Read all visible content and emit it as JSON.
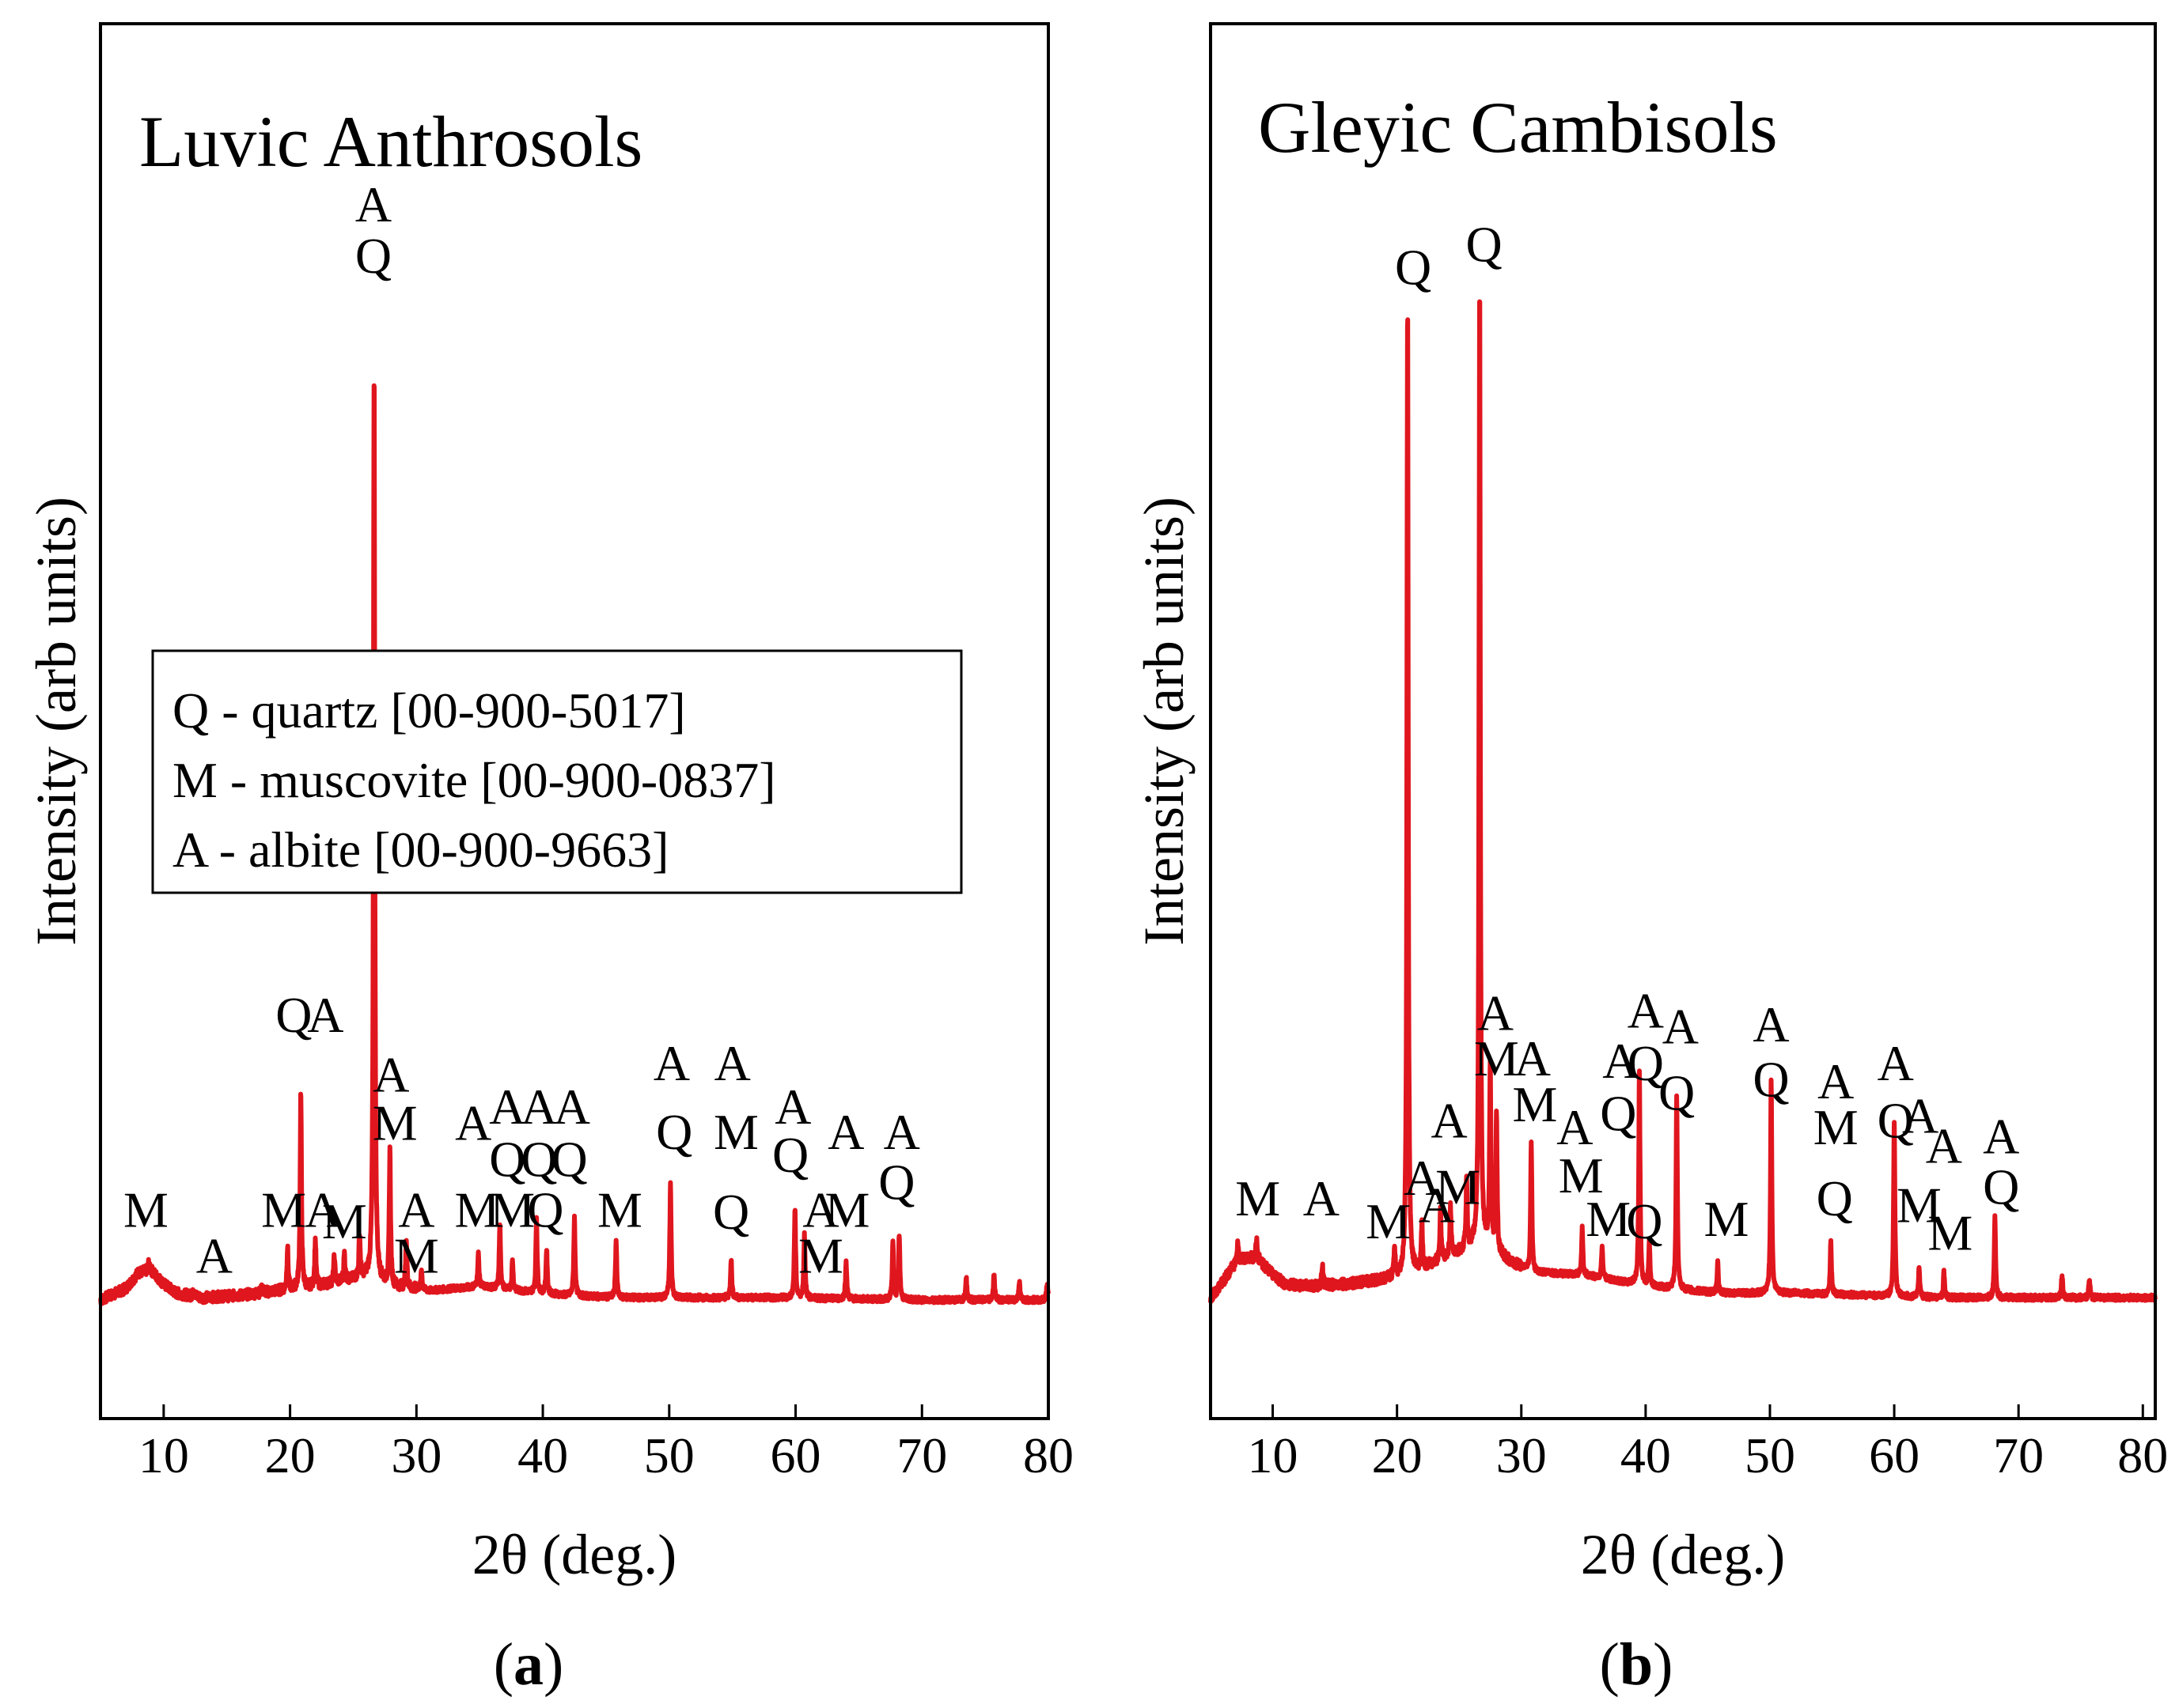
{
  "figure_labels": [
    {
      "prefix": "(",
      "letter": "a",
      "suffix": ")"
    },
    {
      "prefix": "(",
      "letter": "b",
      "suffix": ")"
    }
  ],
  "legend": {
    "entries": [
      "Q - quartz [00-900-5017]",
      "M - muscovite [00-900-0837]",
      "A - albite [00-900-9663]"
    ]
  },
  "chart_data": [
    {
      "type": "line",
      "title": "Luvic Anthrosols",
      "xlabel": "2θ (deg.)",
      "ylabel": "Intensity (arb units)",
      "xlim": [
        5,
        80
      ],
      "ylim": [
        0,
        1000
      ],
      "xticks": [
        10,
        20,
        30,
        40,
        50,
        60,
        70,
        80
      ],
      "series_color": "#e0161e",
      "baseline": 58,
      "background": [
        [
          5,
          58
        ],
        [
          7,
          68
        ],
        [
          8,
          82
        ],
        [
          9,
          84
        ],
        [
          10,
          72
        ],
        [
          11,
          64
        ],
        [
          13,
          60
        ],
        [
          16,
          62
        ],
        [
          19,
          66
        ],
        [
          22,
          70
        ],
        [
          24,
          74
        ],
        [
          26,
          78
        ],
        [
          28,
          70
        ],
        [
          31,
          66
        ],
        [
          35,
          70
        ],
        [
          38,
          66
        ],
        [
          42,
          62
        ],
        [
          46,
          60
        ],
        [
          52,
          60
        ],
        [
          58,
          60
        ],
        [
          64,
          59
        ],
        [
          70,
          58
        ],
        [
          76,
          58
        ],
        [
          80,
          58
        ]
      ],
      "peaks": [
        {
          "x": 8.8,
          "y": 90
        },
        {
          "x": 12.4,
          "y": 68
        },
        {
          "x": 17.8,
          "y": 70
        },
        {
          "x": 19.8,
          "y": 104
        },
        {
          "x": 20.85,
          "y": 240
        },
        {
          "x": 22.0,
          "y": 110
        },
        {
          "x": 23.5,
          "y": 95
        },
        {
          "x": 24.3,
          "y": 98
        },
        {
          "x": 25.5,
          "y": 115
        },
        {
          "x": 26.65,
          "y": 880
        },
        {
          "x": 27.9,
          "y": 190
        },
        {
          "x": 29.2,
          "y": 110
        },
        {
          "x": 30.4,
          "y": 84
        },
        {
          "x": 34.9,
          "y": 98
        },
        {
          "x": 36.6,
          "y": 125
        },
        {
          "x": 37.6,
          "y": 92
        },
        {
          "x": 39.5,
          "y": 130
        },
        {
          "x": 40.3,
          "y": 102
        },
        {
          "x": 42.5,
          "y": 130
        },
        {
          "x": 45.8,
          "y": 110
        },
        {
          "x": 50.1,
          "y": 160
        },
        {
          "x": 54.9,
          "y": 94
        },
        {
          "x": 59.95,
          "y": 138
        },
        {
          "x": 60.7,
          "y": 115
        },
        {
          "x": 64.0,
          "y": 92
        },
        {
          "x": 67.7,
          "y": 110
        },
        {
          "x": 68.2,
          "y": 115
        },
        {
          "x": 73.5,
          "y": 78
        },
        {
          "x": 75.7,
          "y": 80
        },
        {
          "x": 77.7,
          "y": 74
        },
        {
          "x": 79.9,
          "y": 72
        }
      ],
      "annotations": [
        {
          "label": "M",
          "x": 8.6,
          "y": 122
        },
        {
          "label": "A",
          "x": 14.0,
          "y": 82
        },
        {
          "label": "M",
          "x": 19.5,
          "y": 122
        },
        {
          "label": "Q",
          "x": 20.3,
          "y": 292
        },
        {
          "label": "A",
          "x": 22.8,
          "y": 292
        },
        {
          "label": "A",
          "x": 22.6,
          "y": 122
        },
        {
          "label": "M",
          "x": 24.3,
          "y": 112
        },
        {
          "label": "A",
          "x": 26.6,
          "y": 1000
        },
        {
          "label": "Q",
          "x": 26.6,
          "y": 955
        },
        {
          "label": "A",
          "x": 28.0,
          "y": 240
        },
        {
          "label": "M",
          "x": 28.3,
          "y": 198
        },
        {
          "label": "A",
          "x": 30.0,
          "y": 122
        },
        {
          "label": "M",
          "x": 30.0,
          "y": 82
        },
        {
          "label": "A",
          "x": 34.5,
          "y": 198
        },
        {
          "label": "M",
          "x": 34.8,
          "y": 122
        },
        {
          "label": "A",
          "x": 37.2,
          "y": 212
        },
        {
          "label": "Q",
          "x": 37.2,
          "y": 166
        },
        {
          "label": "M",
          "x": 37.6,
          "y": 122
        },
        {
          "label": "A",
          "x": 39.7,
          "y": 212
        },
        {
          "label": "Q",
          "x": 39.7,
          "y": 166
        },
        {
          "label": "Q",
          "x": 40.2,
          "y": 122
        },
        {
          "label": "A",
          "x": 42.3,
          "y": 212
        },
        {
          "label": "Q",
          "x": 42.1,
          "y": 166
        },
        {
          "label": "M",
          "x": 46.1,
          "y": 122
        },
        {
          "label": "A",
          "x": 50.2,
          "y": 250
        },
        {
          "label": "Q",
          "x": 50.4,
          "y": 190
        },
        {
          "label": "A",
          "x": 55.0,
          "y": 250
        },
        {
          "label": "M",
          "x": 55.3,
          "y": 190
        },
        {
          "label": "Q",
          "x": 54.9,
          "y": 120
        },
        {
          "label": "A",
          "x": 59.8,
          "y": 212
        },
        {
          "label": "Q",
          "x": 59.6,
          "y": 170
        },
        {
          "label": "A",
          "x": 62.0,
          "y": 122
        },
        {
          "label": "M",
          "x": 62.0,
          "y": 82
        },
        {
          "label": "M",
          "x": 64.1,
          "y": 122
        },
        {
          "label": "A",
          "x": 64.0,
          "y": 190
        },
        {
          "label": "A",
          "x": 68.4,
          "y": 190
        },
        {
          "label": "Q",
          "x": 68.0,
          "y": 146
        }
      ]
    },
    {
      "type": "line",
      "title": "Gleyic Cambisols",
      "xlabel": "2θ (deg.)",
      "ylabel": "Intensity (arb units)",
      "xlim": [
        5,
        81
      ],
      "ylim": [
        0,
        1000
      ],
      "xticks": [
        10,
        20,
        30,
        40,
        50,
        60,
        70,
        80
      ],
      "series_color": "#e0161e",
      "baseline": 60,
      "background": [
        [
          5,
          60
        ],
        [
          6,
          74
        ],
        [
          7,
          90
        ],
        [
          8,
          96
        ],
        [
          9,
          92
        ],
        [
          10,
          80
        ],
        [
          11,
          72
        ],
        [
          13,
          70
        ],
        [
          16,
          72
        ],
        [
          19,
          76
        ],
        [
          21,
          80
        ],
        [
          23,
          90
        ],
        [
          25,
          100
        ],
        [
          27,
          108
        ],
        [
          29,
          92
        ],
        [
          31,
          82
        ],
        [
          35,
          80
        ],
        [
          38,
          74
        ],
        [
          42,
          68
        ],
        [
          46,
          64
        ],
        [
          52,
          64
        ],
        [
          58,
          62
        ],
        [
          64,
          60
        ],
        [
          70,
          60
        ],
        [
          76,
          60
        ],
        [
          81,
          60
        ]
      ],
      "peaks": [
        {
          "x": 7.2,
          "y": 108
        },
        {
          "x": 8.7,
          "y": 112
        },
        {
          "x": 14.0,
          "y": 88
        },
        {
          "x": 19.8,
          "y": 104
        },
        {
          "x": 20.85,
          "y": 935
        },
        {
          "x": 22.0,
          "y": 125
        },
        {
          "x": 23.5,
          "y": 135
        },
        {
          "x": 24.3,
          "y": 140
        },
        {
          "x": 25.6,
          "y": 160
        },
        {
          "x": 26.65,
          "y": 950
        },
        {
          "x": 27.5,
          "y": 265
        },
        {
          "x": 28.0,
          "y": 220
        },
        {
          "x": 30.8,
          "y": 195
        },
        {
          "x": 34.9,
          "y": 120
        },
        {
          "x": 36.5,
          "y": 105
        },
        {
          "x": 39.5,
          "y": 260
        },
        {
          "x": 40.3,
          "y": 108
        },
        {
          "x": 42.5,
          "y": 235
        },
        {
          "x": 45.8,
          "y": 90
        },
        {
          "x": 50.1,
          "y": 250
        },
        {
          "x": 54.9,
          "y": 108
        },
        {
          "x": 60.0,
          "y": 215
        },
        {
          "x": 62.0,
          "y": 88
        },
        {
          "x": 64.0,
          "y": 82
        },
        {
          "x": 68.1,
          "y": 130
        },
        {
          "x": 73.5,
          "y": 80
        },
        {
          "x": 75.7,
          "y": 76
        }
      ],
      "annotations": [
        {
          "label": "Q",
          "x": 21.3,
          "y": 945
        },
        {
          "label": "Q",
          "x": 27.0,
          "y": 965
        },
        {
          "label": "M",
          "x": 8.8,
          "y": 132
        },
        {
          "label": "A",
          "x": 13.9,
          "y": 132
        },
        {
          "label": "M",
          "x": 19.3,
          "y": 112
        },
        {
          "label": "A",
          "x": 22.0,
          "y": 150
        },
        {
          "label": "A",
          "x": 24.2,
          "y": 200
        },
        {
          "label": "A",
          "x": 23.2,
          "y": 126
        },
        {
          "label": "M",
          "x": 24.9,
          "y": 142
        },
        {
          "label": "A",
          "x": 27.9,
          "y": 294
        },
        {
          "label": "M",
          "x": 28.0,
          "y": 254
        },
        {
          "label": "A",
          "x": 30.9,
          "y": 254
        },
        {
          "label": "M",
          "x": 31.1,
          "y": 214
        },
        {
          "label": "A",
          "x": 34.3,
          "y": 194
        },
        {
          "label": "M",
          "x": 34.8,
          "y": 152
        },
        {
          "label": "A",
          "x": 38.0,
          "y": 252
        },
        {
          "label": "Q",
          "x": 37.8,
          "y": 206
        },
        {
          "label": "M",
          "x": 37.0,
          "y": 114
        },
        {
          "label": "A",
          "x": 40.0,
          "y": 296
        },
        {
          "label": "Q",
          "x": 40.0,
          "y": 250
        },
        {
          "label": "Q",
          "x": 39.9,
          "y": 112
        },
        {
          "label": "A",
          "x": 42.8,
          "y": 282
        },
        {
          "label": "Q",
          "x": 42.5,
          "y": 224
        },
        {
          "label": "M",
          "x": 46.5,
          "y": 114
        },
        {
          "label": "A",
          "x": 50.1,
          "y": 284
        },
        {
          "label": "Q",
          "x": 50.1,
          "y": 236
        },
        {
          "label": "A",
          "x": 55.3,
          "y": 234
        },
        {
          "label": "M",
          "x": 55.3,
          "y": 194
        },
        {
          "label": "Q",
          "x": 55.2,
          "y": 132
        },
        {
          "label": "A",
          "x": 60.1,
          "y": 250
        },
        {
          "label": "Q",
          "x": 60.1,
          "y": 200
        },
        {
          "label": "A",
          "x": 62.1,
          "y": 204
        },
        {
          "label": "M",
          "x": 62.0,
          "y": 126
        },
        {
          "label": "A",
          "x": 64.0,
          "y": 178
        },
        {
          "label": "M",
          "x": 64.5,
          "y": 102
        },
        {
          "label": "A",
          "x": 68.6,
          "y": 186
        },
        {
          "label": "Q",
          "x": 68.6,
          "y": 142
        }
      ]
    }
  ]
}
